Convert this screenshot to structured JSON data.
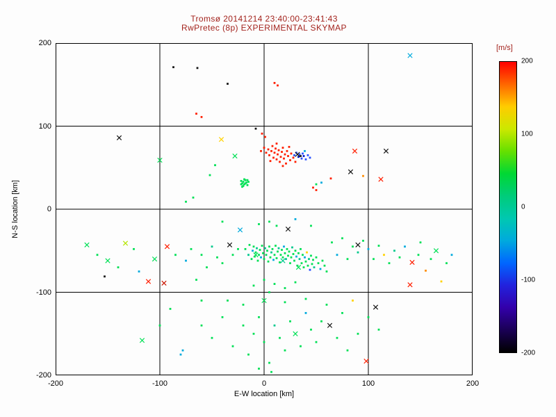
{
  "page": {
    "background": "#fdfdfd"
  },
  "chart_data": {
    "type": "scatter",
    "title": "Tromsø 20141214 23:40:00-23:41:43",
    "subtitle": "RwPretec (8p) EXPERIMENTAL SKYMAP",
    "title_color": "#a3231d",
    "axis_color": "#000000",
    "xlabel": "E-W location [km]",
    "ylabel": "N-S location [km]",
    "xlim": [
      -200,
      200
    ],
    "ylim": [
      -200,
      200
    ],
    "xticks": [
      -200,
      -100,
      0,
      100,
      200
    ],
    "yticks": [
      -200,
      -100,
      0,
      100,
      200
    ],
    "grid": true,
    "colorbar": {
      "label": "[m/s]",
      "min": -200,
      "max": 200,
      "ticks": [
        200,
        100,
        0,
        -100,
        -200
      ],
      "gradient": [
        "#ff0000",
        "#ff6600",
        "#ffcc00",
        "#cce800",
        "#66e000",
        "#00d834",
        "#00cc7a",
        "#00c8b0",
        "#00aadd",
        "#0066ff",
        "#2222dd",
        "#3300aa",
        "#1a0055",
        "#000000"
      ]
    },
    "palette": {
      "r": "#ff1e00",
      "R": "#c81400",
      "o": "#ff8c00",
      "y": "#ffd200",
      "Y": "#b4e600",
      "G": "#00e055",
      "g": "#00c88c",
      "t": "#00c8b4",
      "c": "#00aadd",
      "b": "#2850ff",
      "B": "#0018cc",
      "k": "#141414"
    },
    "points": [
      [
        -3,
        70,
        "r"
      ],
      [
        0,
        74,
        "r"
      ],
      [
        2,
        68,
        "r"
      ],
      [
        4,
        72,
        "r"
      ],
      [
        5,
        65,
        "r"
      ],
      [
        7,
        70,
        "r"
      ],
      [
        8,
        76,
        "r"
      ],
      [
        9,
        62,
        "r"
      ],
      [
        10,
        68,
        "r"
      ],
      [
        11,
        73,
        "r"
      ],
      [
        12,
        60,
        "r"
      ],
      [
        13,
        66,
        "r"
      ],
      [
        14,
        71,
        "r"
      ],
      [
        15,
        57,
        "r"
      ],
      [
        16,
        63,
        "r"
      ],
      [
        17,
        69,
        "r"
      ],
      [
        18,
        74,
        "r"
      ],
      [
        19,
        61,
        "r"
      ],
      [
        20,
        66,
        "r"
      ],
      [
        21,
        55,
        "r"
      ],
      [
        22,
        70,
        "r"
      ],
      [
        23,
        64,
        "r"
      ],
      [
        25,
        59,
        "r"
      ],
      [
        26,
        67,
        "r"
      ],
      [
        28,
        62,
        "r"
      ],
      [
        30,
        57,
        "r"
      ],
      [
        24,
        75,
        "r"
      ],
      [
        12,
        79,
        "r"
      ],
      [
        6,
        58,
        "r"
      ],
      [
        18,
        52,
        "r"
      ],
      [
        29,
        65,
        "b"
      ],
      [
        31,
        68,
        "b"
      ],
      [
        33,
        63,
        "B"
      ],
      [
        34,
        66,
        "b"
      ],
      [
        36,
        61,
        "b"
      ],
      [
        37,
        67,
        "b"
      ],
      [
        38,
        64,
        "B"
      ],
      [
        40,
        60,
        "b"
      ],
      [
        42,
        65,
        "b"
      ],
      [
        44,
        62,
        "b"
      ],
      [
        39,
        70,
        "c"
      ],
      [
        35,
        64,
        "k"
      ],
      [
        32,
        66,
        "k",
        "x"
      ],
      [
        -22,
        34,
        "G"
      ],
      [
        -21,
        31,
        "G"
      ],
      [
        -20,
        33,
        "G"
      ],
      [
        -19,
        30,
        "G"
      ],
      [
        -18,
        35,
        "G"
      ],
      [
        -17,
        32,
        "G"
      ],
      [
        -16,
        29,
        "G"
      ],
      [
        -15,
        33,
        "G"
      ],
      [
        -20,
        28,
        "G"
      ],
      [
        -18,
        31,
        "G"
      ],
      [
        -22,
        30,
        "G"
      ],
      [
        -16,
        35,
        "G"
      ],
      [
        -19,
        36,
        "G"
      ],
      [
        -21,
        27,
        "G"
      ],
      [
        -87,
        171,
        "k"
      ],
      [
        -64,
        170,
        "k"
      ],
      [
        140,
        185,
        "c",
        "x"
      ],
      [
        10,
        152,
        "r"
      ],
      [
        13,
        149,
        "r"
      ],
      [
        -65,
        115,
        "r"
      ],
      [
        -60,
        111,
        "r"
      ],
      [
        -139,
        86,
        "k",
        "x"
      ],
      [
        -41,
        84,
        "y",
        "x"
      ],
      [
        -28,
        64,
        "G",
        "x"
      ],
      [
        -52,
        41,
        "G"
      ],
      [
        -47,
        53,
        "G"
      ],
      [
        87,
        70,
        "r",
        "x"
      ],
      [
        117,
        70,
        "k",
        "x"
      ],
      [
        47,
        26,
        "r"
      ],
      [
        50,
        23,
        "r"
      ],
      [
        83,
        45,
        "k",
        "x"
      ],
      [
        95,
        40,
        "o"
      ],
      [
        50,
        30,
        "G"
      ],
      [
        55,
        32,
        "c"
      ],
      [
        -8,
        97,
        "k"
      ],
      [
        -100,
        59,
        "G",
        "x"
      ],
      [
        -2,
        91,
        "r"
      ],
      [
        1,
        87,
        "r"
      ],
      [
        -35,
        151,
        "k"
      ],
      [
        -75,
        9,
        "G"
      ],
      [
        -68,
        14,
        "G"
      ],
      [
        64,
        37,
        "r"
      ],
      [
        112,
        36,
        "r",
        "x"
      ],
      [
        23,
        -24,
        "k",
        "x"
      ],
      [
        -23,
        -25,
        "c",
        "x"
      ],
      [
        5,
        -15,
        "G"
      ],
      [
        12,
        -20,
        "G"
      ],
      [
        -5,
        -18,
        "G"
      ],
      [
        30,
        -12,
        "c"
      ],
      [
        -40,
        -15,
        "G"
      ],
      [
        45,
        -20,
        "G"
      ],
      [
        -18,
        -48,
        "G"
      ],
      [
        -15,
        -55,
        "g"
      ],
      [
        -14,
        -43,
        "G"
      ],
      [
        -12,
        -60,
        "G"
      ],
      [
        -11,
        -50,
        "c"
      ],
      [
        -10,
        -45,
        "G"
      ],
      [
        -9,
        -57,
        "G"
      ],
      [
        -8,
        -52,
        "G"
      ],
      [
        -7,
        -47,
        "g"
      ],
      [
        -6,
        -62,
        "G"
      ],
      [
        -5,
        -55,
        "G"
      ],
      [
        -4,
        -49,
        "G"
      ],
      [
        -3,
        -58,
        "c"
      ],
      [
        -2,
        -44,
        "G"
      ],
      [
        -1,
        -53,
        "G"
      ],
      [
        0,
        -60,
        "G"
      ],
      [
        1,
        -47,
        "g"
      ],
      [
        2,
        -55,
        "G"
      ],
      [
        3,
        -50,
        "G"
      ],
      [
        4,
        -63,
        "G"
      ],
      [
        5,
        -45,
        "G"
      ],
      [
        6,
        -58,
        "G"
      ],
      [
        7,
        -52,
        "g"
      ],
      [
        8,
        -48,
        "G"
      ],
      [
        9,
        -61,
        "c"
      ],
      [
        10,
        -55,
        "G"
      ],
      [
        11,
        -44,
        "G"
      ],
      [
        12,
        -59,
        "G"
      ],
      [
        13,
        -51,
        "G"
      ],
      [
        14,
        -47,
        "g"
      ],
      [
        15,
        -64,
        "G"
      ],
      [
        16,
        -55,
        "G"
      ],
      [
        17,
        -49,
        "G"
      ],
      [
        18,
        -58,
        "G"
      ],
      [
        19,
        -45,
        "c"
      ],
      [
        20,
        -53,
        "G"
      ],
      [
        21,
        -60,
        "g"
      ],
      [
        22,
        -48,
        "G"
      ],
      [
        23,
        -56,
        "G"
      ],
      [
        24,
        -51,
        "G"
      ],
      [
        25,
        -65,
        "G"
      ],
      [
        26,
        -58,
        "G"
      ],
      [
        27,
        -46,
        "g"
      ],
      [
        28,
        -54,
        "G"
      ],
      [
        29,
        -62,
        "G"
      ],
      [
        30,
        -50,
        "G"
      ],
      [
        31,
        -57,
        "c"
      ],
      [
        32,
        -68,
        "G"
      ],
      [
        33,
        -53,
        "G"
      ],
      [
        34,
        -60,
        "g"
      ],
      [
        35,
        -48,
        "G"
      ],
      [
        36,
        -65,
        "G"
      ],
      [
        37,
        -55,
        "G"
      ],
      [
        38,
        -70,
        "G"
      ],
      [
        39,
        -58,
        "c"
      ],
      [
        40,
        -63,
        "G"
      ],
      [
        41,
        -52,
        "y"
      ],
      [
        42,
        -68,
        "G"
      ],
      [
        43,
        -60,
        "g"
      ],
      [
        44,
        -73,
        "b"
      ],
      [
        45,
        -56,
        "G"
      ],
      [
        46,
        -66,
        "G"
      ],
      [
        47,
        -61,
        "G"
      ],
      [
        48,
        -70,
        "g"
      ],
      [
        50,
        -58,
        "G"
      ],
      [
        52,
        -65,
        "G"
      ],
      [
        54,
        -72,
        "c"
      ],
      [
        56,
        -62,
        "G"
      ],
      [
        58,
        -68,
        "G"
      ],
      [
        60,
        -75,
        "G"
      ],
      [
        -8,
        -55,
        "G",
        "x"
      ],
      [
        18,
        -62,
        "g",
        "x"
      ],
      [
        33,
        -70,
        "G",
        "x"
      ],
      [
        65,
        -40,
        "G"
      ],
      [
        70,
        -55,
        "c"
      ],
      [
        75,
        -35,
        "G"
      ],
      [
        80,
        -60,
        "G"
      ],
      [
        85,
        -45,
        "G"
      ],
      [
        90,
        -52,
        "g"
      ],
      [
        95,
        -38,
        "G"
      ],
      [
        100,
        -48,
        "c"
      ],
      [
        105,
        -60,
        "G"
      ],
      [
        110,
        -44,
        "G"
      ],
      [
        115,
        -55,
        "y"
      ],
      [
        120,
        -65,
        "G"
      ],
      [
        125,
        -50,
        "g"
      ],
      [
        130,
        -58,
        "G"
      ],
      [
        135,
        -45,
        "c"
      ],
      [
        142,
        -64,
        "r",
        "x"
      ],
      [
        148,
        -55,
        "G"
      ],
      [
        155,
        -74,
        "o"
      ],
      [
        160,
        -60,
        "G"
      ],
      [
        165,
        -50,
        "G",
        "x"
      ],
      [
        170,
        -87,
        "y"
      ],
      [
        175,
        -65,
        "G"
      ],
      [
        180,
        -55,
        "c"
      ],
      [
        150,
        -40,
        "G"
      ],
      [
        140,
        -91,
        "r",
        "x"
      ],
      [
        90,
        -43,
        "k",
        "x"
      ],
      [
        -170,
        -43,
        "G",
        "x"
      ],
      [
        -150,
        -62,
        "G",
        "x"
      ],
      [
        -133,
        -41,
        "Y",
        "x"
      ],
      [
        -160,
        -55,
        "G"
      ],
      [
        -153,
        -81,
        "k"
      ],
      [
        -140,
        -70,
        "G"
      ],
      [
        -125,
        -48,
        "G"
      ],
      [
        -111,
        -87,
        "r",
        "x"
      ],
      [
        -96,
        -89,
        "R",
        "x"
      ],
      [
        -93,
        -45,
        "r",
        "x"
      ],
      [
        -85,
        -55,
        "G"
      ],
      [
        -75,
        -62,
        "c"
      ],
      [
        -70,
        -48,
        "G"
      ],
      [
        -60,
        -55,
        "G"
      ],
      [
        -55,
        -70,
        "G"
      ],
      [
        -50,
        -45,
        "g"
      ],
      [
        -45,
        -58,
        "G"
      ],
      [
        -40,
        -65,
        "G"
      ],
      [
        -33,
        -43,
        "k",
        "x"
      ],
      [
        -30,
        -55,
        "G"
      ],
      [
        -25,
        -48,
        "G"
      ],
      [
        -65,
        -85,
        "G"
      ],
      [
        -105,
        -60,
        "G",
        "x"
      ],
      [
        -120,
        -75,
        "c"
      ],
      [
        -80,
        -175,
        "c"
      ],
      [
        -78,
        -170,
        "c"
      ],
      [
        -117,
        -158,
        "G",
        "x"
      ],
      [
        -60,
        -140,
        "G"
      ],
      [
        -50,
        -155,
        "G"
      ],
      [
        -40,
        -130,
        "G"
      ],
      [
        -30,
        -165,
        "G"
      ],
      [
        -20,
        -140,
        "G"
      ],
      [
        -15,
        -175,
        "G"
      ],
      [
        -10,
        -150,
        "G"
      ],
      [
        -5,
        -130,
        "G"
      ],
      [
        0,
        -160,
        "G"
      ],
      [
        5,
        -185,
        "G"
      ],
      [
        7,
        -196,
        "G"
      ],
      [
        10,
        -140,
        "g"
      ],
      [
        15,
        -155,
        "G"
      ],
      [
        20,
        -170,
        "G"
      ],
      [
        25,
        -135,
        "G"
      ],
      [
        30,
        -150,
        "G",
        "x"
      ],
      [
        35,
        -165,
        "G"
      ],
      [
        40,
        -125,
        "c"
      ],
      [
        45,
        -145,
        "G"
      ],
      [
        50,
        -160,
        "G"
      ],
      [
        55,
        -135,
        "G"
      ],
      [
        63,
        -140,
        "k",
        "x"
      ],
      [
        70,
        -155,
        "G"
      ],
      [
        75,
        -125,
        "G"
      ],
      [
        80,
        -170,
        "G"
      ],
      [
        98,
        -183,
        "r",
        "x"
      ],
      [
        90,
        -150,
        "G"
      ],
      [
        100,
        -130,
        "G"
      ],
      [
        107,
        -118,
        "k",
        "x"
      ],
      [
        110,
        -145,
        "G"
      ],
      [
        -35,
        -110,
        "G"
      ],
      [
        -20,
        -115,
        "G"
      ],
      [
        0,
        -110,
        "G",
        "x"
      ],
      [
        20,
        -112,
        "G"
      ],
      [
        40,
        -108,
        "G"
      ],
      [
        60,
        -115,
        "G"
      ],
      [
        85,
        -110,
        "y"
      ],
      [
        -60,
        -110,
        "G"
      ],
      [
        -90,
        -120,
        "G"
      ],
      [
        -100,
        -140,
        "G"
      ],
      [
        0,
        -85,
        "G"
      ],
      [
        10,
        -90,
        "G"
      ],
      [
        20,
        -95,
        "G"
      ],
      [
        -10,
        -92,
        "G"
      ],
      [
        30,
        -88,
        "G"
      ],
      [
        5,
        -100,
        "G"
      ],
      [
        -5,
        -192,
        "G"
      ]
    ]
  }
}
